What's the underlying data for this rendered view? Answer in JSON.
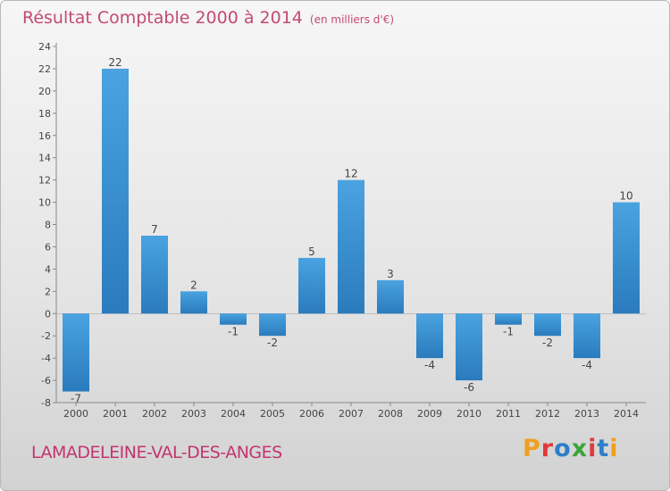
{
  "header": {
    "title": "Résultat Comptable 2000 à 2014",
    "subtitle": "(en milliers d'€)"
  },
  "footer": {
    "commune": "LAMADELEINE-VAL-DES-ANGES",
    "logo_letters": [
      "P",
      "r",
      "o",
      "x",
      "i",
      "t",
      "i"
    ],
    "logo_colors": [
      "#f0a020",
      "#e03a3a",
      "#2c7fc9",
      "#3aa53a",
      "#e03a3a",
      "#2c7fc9",
      "#f0a020"
    ]
  },
  "chart_data": {
    "type": "bar",
    "categories": [
      "2000",
      "2001",
      "2002",
      "2003",
      "2004",
      "2005",
      "2006",
      "2007",
      "2008",
      "2009",
      "2010",
      "2011",
      "2012",
      "2013",
      "2014"
    ],
    "values": [
      -7,
      22,
      7,
      2,
      -1,
      -2,
      5,
      12,
      3,
      -4,
      -6,
      -1,
      -2,
      -4,
      10
    ],
    "ylim": [
      -8,
      24
    ],
    "yticks": [
      -8,
      -6,
      -4,
      -2,
      0,
      2,
      4,
      6,
      8,
      10,
      12,
      14,
      16,
      18,
      20,
      22,
      24
    ],
    "bar_color": "#4aa3e0",
    "bar_color_dark": "#2a7bbd",
    "grid": false
  }
}
